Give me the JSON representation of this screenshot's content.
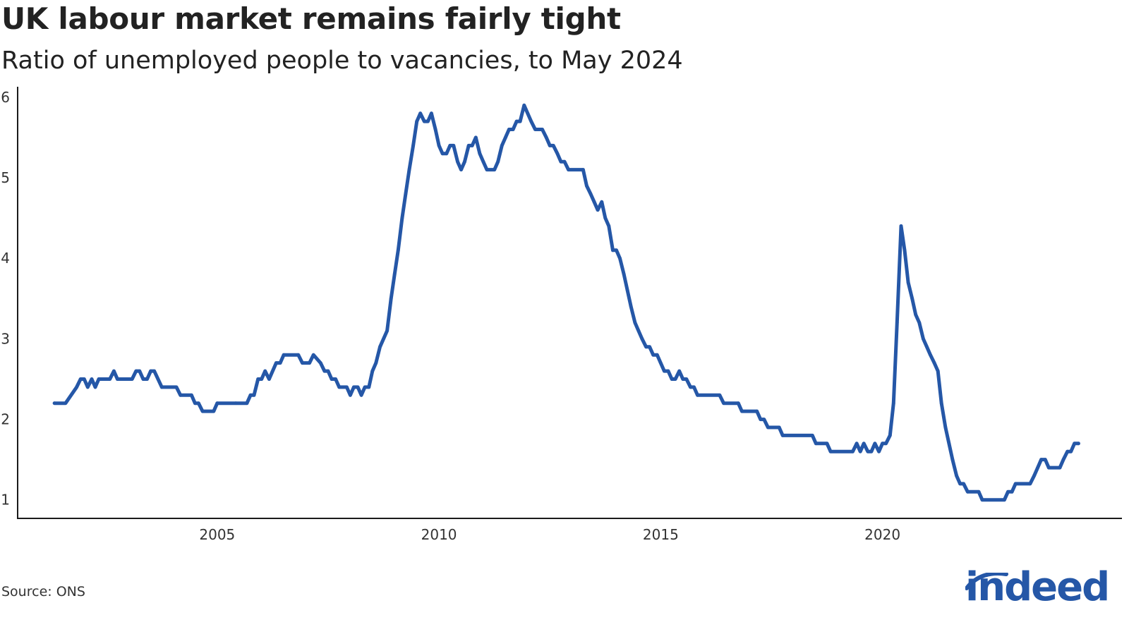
{
  "title": "UK labour market remains fairly tight",
  "subtitle": "Ratio of unemployed people to vacancies, to May 2024",
  "source": "Source: ONS",
  "logo_text": "indeed",
  "colors": {
    "line": "#2557a7",
    "axis": "#1a1a1a",
    "text": "#333333"
  },
  "chart_data": {
    "type": "line",
    "title": "UK labour market remains fairly tight",
    "subtitle": "Ratio of unemployed people to vacancies, to May 2024",
    "xlabel": "",
    "ylabel": "",
    "xlim": [
      2000.5,
      2025.4
    ],
    "ylim": [
      0.77,
      6.13
    ],
    "y_ticks": [
      1,
      2,
      3,
      4,
      5,
      6
    ],
    "x_ticks": [
      2005,
      2010,
      2015,
      2020
    ],
    "grid": false,
    "legend": "none",
    "series": [
      {
        "points": [
          [
            2001.33,
            2.2
          ],
          [
            2001.58,
            2.2
          ],
          [
            2001.83,
            2.4
          ],
          [
            2001.92,
            2.5
          ],
          [
            2002.0,
            2.5
          ],
          [
            2002.08,
            2.4
          ],
          [
            2002.17,
            2.5
          ],
          [
            2002.25,
            2.4
          ],
          [
            2002.33,
            2.5
          ],
          [
            2002.58,
            2.5
          ],
          [
            2002.67,
            2.6
          ],
          [
            2002.75,
            2.5
          ],
          [
            2003.08,
            2.5
          ],
          [
            2003.17,
            2.6
          ],
          [
            2003.25,
            2.6
          ],
          [
            2003.33,
            2.5
          ],
          [
            2003.42,
            2.5
          ],
          [
            2003.5,
            2.6
          ],
          [
            2003.58,
            2.6
          ],
          [
            2003.75,
            2.4
          ],
          [
            2004.08,
            2.4
          ],
          [
            2004.17,
            2.3
          ],
          [
            2004.42,
            2.3
          ],
          [
            2004.5,
            2.2
          ],
          [
            2004.58,
            2.2
          ],
          [
            2004.67,
            2.1
          ],
          [
            2004.92,
            2.1
          ],
          [
            2005.0,
            2.2
          ],
          [
            2005.42,
            2.2
          ],
          [
            2005.67,
            2.2
          ],
          [
            2005.75,
            2.3
          ],
          [
            2005.83,
            2.3
          ],
          [
            2005.92,
            2.5
          ],
          [
            2006.0,
            2.5
          ],
          [
            2006.08,
            2.6
          ],
          [
            2006.17,
            2.5
          ],
          [
            2006.33,
            2.7
          ],
          [
            2006.42,
            2.7
          ],
          [
            2006.5,
            2.8
          ],
          [
            2006.83,
            2.8
          ],
          [
            2006.92,
            2.7
          ],
          [
            2007.08,
            2.7
          ],
          [
            2007.17,
            2.8
          ],
          [
            2007.33,
            2.7
          ],
          [
            2007.42,
            2.6
          ],
          [
            2007.5,
            2.6
          ],
          [
            2007.58,
            2.5
          ],
          [
            2007.67,
            2.5
          ],
          [
            2007.75,
            2.4
          ],
          [
            2007.92,
            2.4
          ],
          [
            2008.0,
            2.3
          ],
          [
            2008.08,
            2.4
          ],
          [
            2008.17,
            2.4
          ],
          [
            2008.25,
            2.3
          ],
          [
            2008.33,
            2.4
          ],
          [
            2008.42,
            2.4
          ],
          [
            2008.5,
            2.6
          ],
          [
            2008.58,
            2.7
          ],
          [
            2008.67,
            2.9
          ],
          [
            2008.83,
            3.1
          ],
          [
            2008.92,
            3.5
          ],
          [
            2009.0,
            3.8
          ],
          [
            2009.08,
            4.1
          ],
          [
            2009.17,
            4.5
          ],
          [
            2009.25,
            4.8
          ],
          [
            2009.33,
            5.1
          ],
          [
            2009.42,
            5.4
          ],
          [
            2009.5,
            5.7
          ],
          [
            2009.58,
            5.8
          ],
          [
            2009.67,
            5.7
          ],
          [
            2009.75,
            5.7
          ],
          [
            2009.83,
            5.8
          ],
          [
            2009.92,
            5.6
          ],
          [
            2010.0,
            5.4
          ],
          [
            2010.08,
            5.3
          ],
          [
            2010.17,
            5.3
          ],
          [
            2010.25,
            5.4
          ],
          [
            2010.33,
            5.4
          ],
          [
            2010.42,
            5.2
          ],
          [
            2010.5,
            5.1
          ],
          [
            2010.58,
            5.2
          ],
          [
            2010.67,
            5.4
          ],
          [
            2010.75,
            5.4
          ],
          [
            2010.83,
            5.5
          ],
          [
            2010.92,
            5.3
          ],
          [
            2011.0,
            5.2
          ],
          [
            2011.08,
            5.1
          ],
          [
            2011.25,
            5.1
          ],
          [
            2011.33,
            5.2
          ],
          [
            2011.42,
            5.4
          ],
          [
            2011.5,
            5.5
          ],
          [
            2011.58,
            5.6
          ],
          [
            2011.67,
            5.6
          ],
          [
            2011.75,
            5.7
          ],
          [
            2011.83,
            5.7
          ],
          [
            2011.92,
            5.9
          ],
          [
            2012.0,
            5.8
          ],
          [
            2012.08,
            5.7
          ],
          [
            2012.17,
            5.6
          ],
          [
            2012.33,
            5.6
          ],
          [
            2012.42,
            5.5
          ],
          [
            2012.5,
            5.4
          ],
          [
            2012.58,
            5.4
          ],
          [
            2012.67,
            5.3
          ],
          [
            2012.75,
            5.2
          ],
          [
            2012.83,
            5.2
          ],
          [
            2012.92,
            5.1
          ],
          [
            2013.25,
            5.1
          ],
          [
            2013.33,
            4.9
          ],
          [
            2013.42,
            4.8
          ],
          [
            2013.5,
            4.7
          ],
          [
            2013.58,
            4.6
          ],
          [
            2013.67,
            4.7
          ],
          [
            2013.75,
            4.5
          ],
          [
            2013.83,
            4.4
          ],
          [
            2013.92,
            4.1
          ],
          [
            2014.0,
            4.1
          ],
          [
            2014.08,
            4.0
          ],
          [
            2014.17,
            3.8
          ],
          [
            2014.25,
            3.6
          ],
          [
            2014.33,
            3.4
          ],
          [
            2014.42,
            3.2
          ],
          [
            2014.5,
            3.1
          ],
          [
            2014.58,
            3.0
          ],
          [
            2014.67,
            2.9
          ],
          [
            2014.75,
            2.9
          ],
          [
            2014.83,
            2.8
          ],
          [
            2014.92,
            2.8
          ],
          [
            2015.0,
            2.7
          ],
          [
            2015.08,
            2.6
          ],
          [
            2015.17,
            2.6
          ],
          [
            2015.25,
            2.5
          ],
          [
            2015.33,
            2.5
          ],
          [
            2015.42,
            2.6
          ],
          [
            2015.5,
            2.5
          ],
          [
            2015.58,
            2.5
          ],
          [
            2015.67,
            2.4
          ],
          [
            2015.75,
            2.4
          ],
          [
            2015.83,
            2.3
          ],
          [
            2016.33,
            2.3
          ],
          [
            2016.42,
            2.2
          ],
          [
            2016.75,
            2.2
          ],
          [
            2016.83,
            2.1
          ],
          [
            2017.17,
            2.1
          ],
          [
            2017.25,
            2.0
          ],
          [
            2017.33,
            2.0
          ],
          [
            2017.42,
            1.9
          ],
          [
            2017.67,
            1.9
          ],
          [
            2017.75,
            1.8
          ],
          [
            2018.42,
            1.8
          ],
          [
            2018.5,
            1.7
          ],
          [
            2018.75,
            1.7
          ],
          [
            2018.83,
            1.6
          ],
          [
            2019.33,
            1.6
          ],
          [
            2019.42,
            1.7
          ],
          [
            2019.5,
            1.6
          ],
          [
            2019.58,
            1.7
          ],
          [
            2019.67,
            1.6
          ],
          [
            2019.75,
            1.6
          ],
          [
            2019.83,
            1.7
          ],
          [
            2019.92,
            1.6
          ],
          [
            2020.0,
            1.7
          ],
          [
            2020.08,
            1.7
          ],
          [
            2020.17,
            1.8
          ],
          [
            2020.25,
            2.2
          ],
          [
            2020.33,
            3.2
          ],
          [
            2020.42,
            4.4
          ],
          [
            2020.5,
            4.1
          ],
          [
            2020.58,
            3.7
          ],
          [
            2020.67,
            3.5
          ],
          [
            2020.75,
            3.3
          ],
          [
            2020.83,
            3.2
          ],
          [
            2020.92,
            3.0
          ],
          [
            2021.0,
            2.9
          ],
          [
            2021.08,
            2.8
          ],
          [
            2021.17,
            2.7
          ],
          [
            2021.25,
            2.6
          ],
          [
            2021.33,
            2.2
          ],
          [
            2021.42,
            1.9
          ],
          [
            2021.5,
            1.7
          ],
          [
            2021.58,
            1.5
          ],
          [
            2021.67,
            1.3
          ],
          [
            2021.75,
            1.2
          ],
          [
            2021.83,
            1.2
          ],
          [
            2021.92,
            1.1
          ],
          [
            2022.17,
            1.1
          ],
          [
            2022.25,
            1.0
          ],
          [
            2022.75,
            1.0
          ],
          [
            2022.83,
            1.1
          ],
          [
            2022.92,
            1.1
          ],
          [
            2023.0,
            1.2
          ],
          [
            2023.33,
            1.2
          ],
          [
            2023.42,
            1.3
          ],
          [
            2023.5,
            1.4
          ],
          [
            2023.58,
            1.5
          ],
          [
            2023.67,
            1.5
          ],
          [
            2023.75,
            1.4
          ],
          [
            2024.0,
            1.4
          ],
          [
            2024.08,
            1.5
          ],
          [
            2024.17,
            1.6
          ],
          [
            2024.25,
            1.6
          ],
          [
            2024.33,
            1.7
          ],
          [
            2024.42,
            1.7
          ]
        ]
      }
    ]
  }
}
